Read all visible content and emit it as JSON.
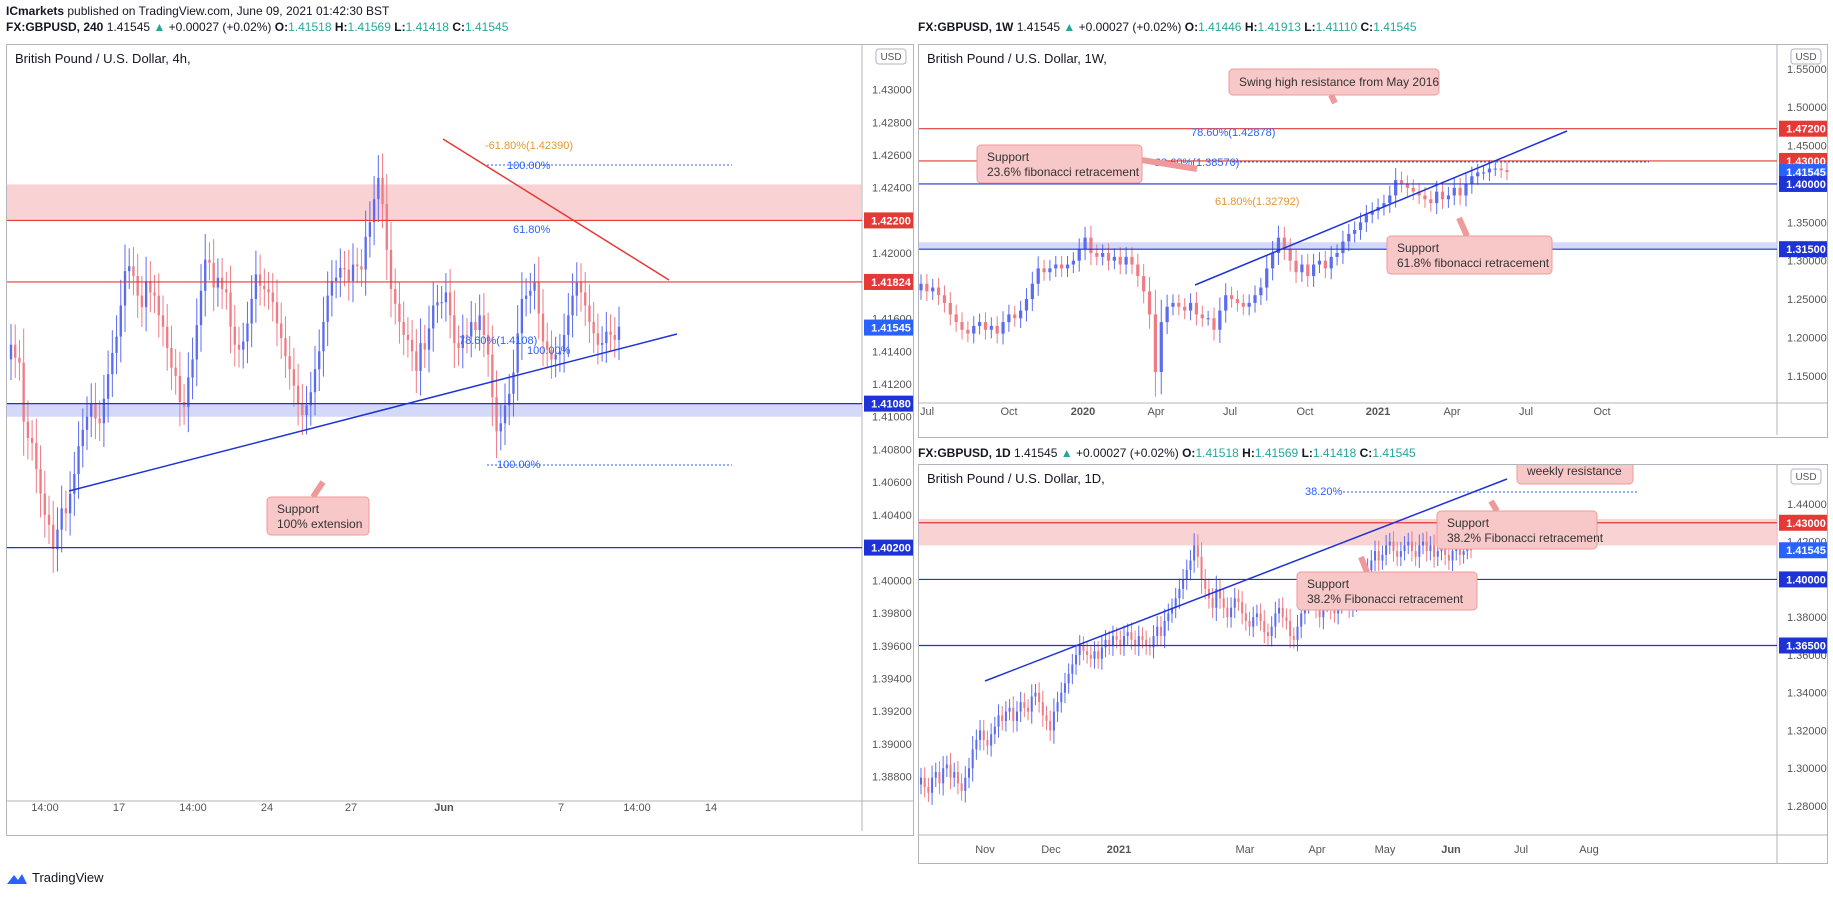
{
  "header": {
    "publisher": "ICmarkets",
    "published_text": "published on TradingView.com, June 09, 2021 01:42:30 BST"
  },
  "footer": {
    "brand": "TradingView"
  },
  "charts": {
    "left": {
      "ohlc_line": [
        "FX:GBPUSD, 240",
        "1.41545",
        "▲",
        "+0.00027 (+0.02%)",
        "O:",
        "1.41518",
        "H:",
        "1.41569",
        "L:",
        "1.41418",
        "C:",
        "1.41545"
      ],
      "title": "British Pound / U.S. Dollar, 4h,",
      "currency": "USD"
    },
    "topright": {
      "ohlc_line": [
        "FX:GBPUSD, 1W",
        "1.41545",
        "▲",
        "+0.00027 (+0.02%)",
        "O:",
        "1.41446",
        "H:",
        "1.41913",
        "L:",
        "1.41110",
        "C:",
        "1.41545"
      ],
      "title": "British Pound / U.S. Dollar, 1W,",
      "currency": "USD"
    },
    "bottomright": {
      "ohlc_line": [
        "FX:GBPUSD, 1D",
        "1.41545",
        "▲",
        "+0.00027 (+0.02%)",
        "O:",
        "1.41518",
        "H:",
        "1.41569",
        "L:",
        "1.41418",
        "C:",
        "1.41545"
      ],
      "title": "British Pound / U.S. Dollar, 1D,",
      "currency": "USD"
    }
  },
  "colors": {
    "up_candle": "#5b6cf0",
    "down_candle": "#ef7b84",
    "resistance": "#e53935",
    "support": "#1e33d6",
    "price_tag": "#2962ff",
    "zone_red": "#f7c3c4",
    "zone_blue": "#c5cbf7",
    "fib_orange": "#e39a2c",
    "fib_blue": "#2962ff"
  },
  "chart_data": [
    {
      "type": "candlestick",
      "panel": "left",
      "timeframe": "4h",
      "title": "British Pound / U.S. Dollar, 4h,",
      "x_ticks": [
        "14:00",
        "17",
        "14:00",
        "24",
        "27",
        "Jun",
        "7",
        "14:00",
        "14"
      ],
      "y_ticks": [
        "1.43000",
        "1.42800",
        "1.42600",
        "1.42400",
        "1.42200",
        "1.42000",
        "1.41800",
        "1.41600",
        "1.41400",
        "1.41200",
        "1.41000",
        "1.40800",
        "1.40600",
        "1.40400",
        "1.40200",
        "1.40000",
        "1.39800",
        "1.39600",
        "1.39400",
        "1.39200",
        "1.39000",
        "1.38800"
      ],
      "ylim": [
        1.387,
        1.4315
      ],
      "candle_count": 150,
      "closes": [
        1.4144,
        1.4136,
        1.4133,
        1.4097,
        1.4087,
        1.4084,
        1.4068,
        1.4053,
        1.404,
        1.4034,
        1.4019,
        1.4031,
        1.4044,
        1.4041,
        1.4053,
        1.4065,
        1.4082,
        1.4092,
        1.41,
        1.4108,
        1.4099,
        1.4096,
        1.4111,
        1.4126,
        1.4139,
        1.4149,
        1.4168,
        1.4189,
        1.4192,
        1.4186,
        1.4174,
        1.4167,
        1.4183,
        1.4176,
        1.4174,
        1.4162,
        1.4155,
        1.4142,
        1.413,
        1.4125,
        1.4109,
        1.4106,
        1.4124,
        1.4135,
        1.4156,
        1.4177,
        1.4196,
        1.4194,
        1.4179,
        1.4185,
        1.4178,
        1.4176,
        1.4155,
        1.4144,
        1.4141,
        1.4146,
        1.4157,
        1.4172,
        1.4187,
        1.418,
        1.4178,
        1.4176,
        1.417,
        1.4157,
        1.4148,
        1.4137,
        1.4129,
        1.4119,
        1.4108,
        1.4101,
        1.4107,
        1.4115,
        1.4129,
        1.414,
        1.4158,
        1.4174,
        1.4183,
        1.4185,
        1.4191,
        1.419,
        1.4183,
        1.4193,
        1.4192,
        1.419,
        1.421,
        1.4219,
        1.4233,
        1.4246,
        1.423,
        1.4202,
        1.4178,
        1.4169,
        1.4158,
        1.415,
        1.4147,
        1.414,
        1.4128,
        1.4145,
        1.4141,
        1.4154,
        1.4168,
        1.417,
        1.417,
        1.4176,
        1.4162,
        1.4145,
        1.4142,
        1.415,
        1.4149,
        1.4158,
        1.4153,
        1.4162,
        1.415,
        1.4138,
        1.4112,
        1.4091,
        1.4096,
        1.4107,
        1.4114,
        1.4127,
        1.4151,
        1.4172,
        1.4174,
        1.4177,
        1.4182,
        1.4163,
        1.4146,
        1.4141,
        1.4135,
        1.4138,
        1.414,
        1.415,
        1.4162,
        1.4174,
        1.4182,
        1.4176,
        1.4168,
        1.4158,
        1.4151,
        1.4144,
        1.4145,
        1.4152,
        1.415,
        1.4147,
        1.4155
      ],
      "horizontal_lines": [
        {
          "price": 1.422,
          "label": "1.42200",
          "kind": "resistance"
        },
        {
          "price": 1.41824,
          "label": "1.41824",
          "kind": "resistance"
        },
        {
          "price": 1.41545,
          "label": "1.41545",
          "kind": "last_price"
        },
        {
          "price": 1.4108,
          "label": "1.41080",
          "kind": "support"
        },
        {
          "price": 1.402,
          "label": "1.40200",
          "kind": "support"
        }
      ],
      "zones": [
        {
          "from": 1.422,
          "to": 1.4242,
          "kind": "resistance"
        },
        {
          "from": 1.41,
          "to": 1.4108,
          "kind": "support"
        }
      ],
      "fib_labels": [
        "-61.80%(1.42390)",
        "100.00%",
        "61.80%",
        "78.60%(1.4108)",
        "100.00%",
        "100.00%"
      ],
      "annotations": [
        "Support",
        "100% extension"
      ]
    },
    {
      "type": "candlestick",
      "panel": "topright",
      "timeframe": "1W",
      "title": "British Pound / U.S. Dollar, 1W,",
      "x_ticks": [
        "Jul",
        "Oct",
        "2020",
        "Apr",
        "Jul",
        "Oct",
        "2021",
        "Apr",
        "Jul",
        "Oct"
      ],
      "y_ticks": [
        "1.55000",
        "1.50000",
        "1.45000",
        "1.40000",
        "1.35000",
        "1.30000",
        "1.25000",
        "1.20000",
        "1.15000"
      ],
      "ylim": [
        1.125,
        1.555
      ],
      "candle_count": 101,
      "closes": [
        1.27,
        1.26,
        1.265,
        1.255,
        1.245,
        1.23,
        1.22,
        1.21,
        1.205,
        1.215,
        1.22,
        1.21,
        1.215,
        1.205,
        1.22,
        1.23,
        1.225,
        1.235,
        1.25,
        1.27,
        1.29,
        1.285,
        1.29,
        1.295,
        1.29,
        1.295,
        1.3,
        1.315,
        1.33,
        1.31,
        1.305,
        1.31,
        1.3,
        1.305,
        1.295,
        1.305,
        1.295,
        1.28,
        1.26,
        1.23,
        1.155,
        1.22,
        1.24,
        1.245,
        1.24,
        1.235,
        1.245,
        1.23,
        1.225,
        1.225,
        1.21,
        1.235,
        1.255,
        1.25,
        1.245,
        1.24,
        1.245,
        1.255,
        1.265,
        1.29,
        1.31,
        1.33,
        1.315,
        1.3,
        1.285,
        1.295,
        1.28,
        1.295,
        1.3,
        1.29,
        1.305,
        1.31,
        1.325,
        1.335,
        1.34,
        1.35,
        1.36,
        1.365,
        1.37,
        1.375,
        1.385,
        1.405,
        1.4,
        1.395,
        1.39,
        1.385,
        1.38,
        1.375,
        1.39,
        1.38,
        1.385,
        1.395,
        1.385,
        1.4,
        1.41,
        1.415,
        1.415,
        1.42,
        1.42,
        1.418,
        1.4154
      ],
      "horizontal_lines": [
        {
          "price": 1.472,
          "label": "1.47200",
          "kind": "resistance"
        },
        {
          "price": 1.43,
          "label": "1.43000",
          "kind": "resistance"
        },
        {
          "price": 1.41545,
          "label": "1.41545",
          "kind": "last_price"
        },
        {
          "price": 1.4,
          "label": "1.40000",
          "kind": "support"
        },
        {
          "price": 1.315,
          "label": "1.31500",
          "kind": "support"
        }
      ],
      "zones": [
        {
          "from": 1.315,
          "to": 1.324,
          "kind": "support"
        }
      ],
      "fib_labels": [
        "78.60%(1.42878)",
        "23.60%(1.38570)",
        "61.80%(1.32792)"
      ],
      "annotations": [
        "Swing high resistance from May 2016",
        "Support",
        "23.6% fibonacci retracement",
        "Support",
        "61.8% fibonacci retracement"
      ]
    },
    {
      "type": "candlestick",
      "panel": "bottomright",
      "timeframe": "1D",
      "title": "British Pound / U.S. Dollar, 1D,",
      "x_ticks": [
        "Nov",
        "Dec",
        "2021",
        "Mar",
        "Apr",
        "May",
        "Jun",
        "Jul",
        "Aug"
      ],
      "y_ticks": [
        "1.44000",
        "1.42000",
        "1.40000",
        "1.38000",
        "1.36000",
        "1.34000",
        "1.32000",
        "1.30000",
        "1.28000"
      ],
      "ylim": [
        1.271,
        1.45
      ],
      "candle_count": 150,
      "closes": [
        1.295,
        1.29,
        1.287,
        1.295,
        1.298,
        1.292,
        1.3,
        1.302,
        1.295,
        1.298,
        1.292,
        1.288,
        1.295,
        1.3,
        1.31,
        1.315,
        1.32,
        1.315,
        1.312,
        1.318,
        1.322,
        1.328,
        1.325,
        1.33,
        1.332,
        1.325,
        1.33,
        1.335,
        1.332,
        1.33,
        1.338,
        1.34,
        1.335,
        1.328,
        1.325,
        1.32,
        1.33,
        1.335,
        1.34,
        1.345,
        1.35,
        1.355,
        1.36,
        1.365,
        1.362,
        1.36,
        1.358,
        1.362,
        1.358,
        1.364,
        1.368,
        1.365,
        1.37,
        1.368,
        1.365,
        1.37,
        1.372,
        1.368,
        1.365,
        1.37,
        1.368,
        1.365,
        1.364,
        1.37,
        1.375,
        1.37,
        1.378,
        1.382,
        1.385,
        1.39,
        1.395,
        1.4,
        1.405,
        1.41,
        1.418,
        1.412,
        1.4,
        1.395,
        1.39,
        1.385,
        1.395,
        1.39,
        1.385,
        1.38,
        1.385,
        1.39,
        1.388,
        1.382,
        1.378,
        1.375,
        1.38,
        1.382,
        1.378,
        1.372,
        1.37,
        1.375,
        1.382,
        1.385,
        1.38,
        1.378,
        1.37,
        1.368,
        1.375,
        1.382,
        1.388,
        1.395,
        1.39,
        1.385,
        1.38,
        1.388,
        1.392,
        1.385,
        1.382,
        1.388,
        1.395,
        1.39,
        1.385,
        1.388,
        1.392,
        1.395,
        1.398,
        1.405,
        1.41,
        1.415,
        1.41,
        1.413,
        1.418,
        1.42,
        1.415,
        1.412,
        1.415,
        1.418,
        1.42,
        1.415,
        1.412,
        1.418,
        1.42,
        1.415,
        1.418,
        1.412,
        1.415,
        1.418,
        1.413,
        1.41,
        1.415,
        1.418,
        1.413,
        1.415,
        1.416,
        1.4154
      ],
      "horizontal_lines": [
        {
          "price": 1.43,
          "label": "1.43000",
          "kind": "resistance"
        },
        {
          "price": 1.41545,
          "label": "1.41545",
          "kind": "last_price"
        },
        {
          "price": 1.4,
          "label": "1.40000",
          "kind": "support"
        },
        {
          "price": 1.365,
          "label": "1.36500",
          "kind": "support"
        }
      ],
      "zones": [
        {
          "from": 1.418,
          "to": 1.432,
          "kind": "resistance"
        }
      ],
      "fib_labels": [
        "38.20%"
      ],
      "annotations": [
        "weekly resistance",
        "Support",
        "38.2% Fibonacci retracement",
        "Support",
        "38.2% Fibonacci retracement"
      ]
    }
  ]
}
